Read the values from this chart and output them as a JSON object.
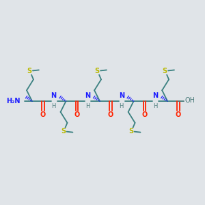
{
  "bg_color": "#e0e4e8",
  "atom_colors": {
    "C": "#3a8080",
    "N": "#1a1aff",
    "O": "#ff2200",
    "S": "#b8b800",
    "H": "#4a7a7a",
    "bond": "#3a8080"
  },
  "figsize": [
    3.0,
    3.0
  ],
  "dpi": 100,
  "xlim": [
    0,
    300
  ],
  "ylim": [
    0,
    300
  ]
}
